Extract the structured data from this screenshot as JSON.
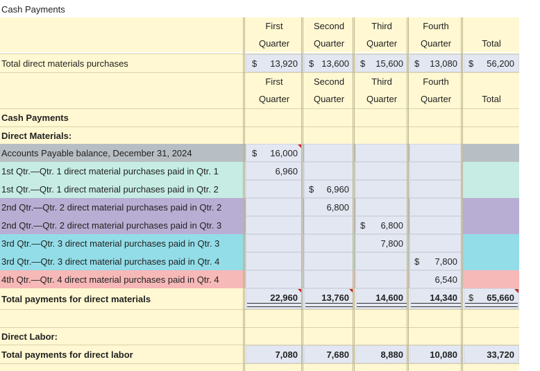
{
  "title": "Cash Payments",
  "headers": {
    "q1_top": "First",
    "q1_bot": "Quarter",
    "q2_top": "Second",
    "q2_bot": "Quarter",
    "q3_top": "Third",
    "q3_bot": "Quarter",
    "q4_top": "Fourth",
    "q4_bot": "Quarter",
    "total": "Total"
  },
  "purchases": {
    "label": "Total direct materials purchases",
    "dollar": "$",
    "q1": "13,920",
    "q2": "13,600",
    "q3": "15,600",
    "q4": "13,080",
    "total": "56,200"
  },
  "section_cash": "Cash Payments",
  "section_dm": "Direct Materials:",
  "rows": [
    {
      "label": "Accounts Payable balance, December 31, 2024",
      "dollar": "$",
      "value": "16,000"
    },
    {
      "label": "1st Qtr.—Qtr. 1 direct material purchases paid in Qtr. 1",
      "value": "6,960"
    },
    {
      "label": "1st Qtr.—Qtr. 1 direct material purchases paid in Qtr. 2",
      "dollar": "$",
      "value": "6,960"
    },
    {
      "label": "2nd Qtr.—Qtr. 2 direct material purchases paid in Qtr. 2",
      "value": "6,800"
    },
    {
      "label": "2nd Qtr.—Qtr. 2 direct material purchases paid in Qtr. 3",
      "dollar": "$",
      "value": "6,800"
    },
    {
      "label": "3rd Qtr.—Qtr. 3 direct material purchases paid in Qtr. 3",
      "value": "7,800"
    },
    {
      "label": "3rd Qtr.—Qtr. 3 direct material purchases paid in Qtr. 4",
      "dollar": "$",
      "value": "7,800"
    },
    {
      "label": "4th Qtr.—Qtr. 4 direct material purchases paid in Qtr. 4",
      "value": "6,540"
    }
  ],
  "total_dm": {
    "label": "Total payments for direct materials",
    "q1": "22,960",
    "q2": "13,760",
    "q3": "14,600",
    "q4": "14,340",
    "dollar": "$",
    "total": "65,660"
  },
  "section_dl": "Direct Labor:",
  "total_dl": {
    "label": "Total payments for direct labor",
    "q1": "7,080",
    "q2": "7,680",
    "q3": "8,880",
    "q4": "10,080",
    "total": "33,720"
  }
}
